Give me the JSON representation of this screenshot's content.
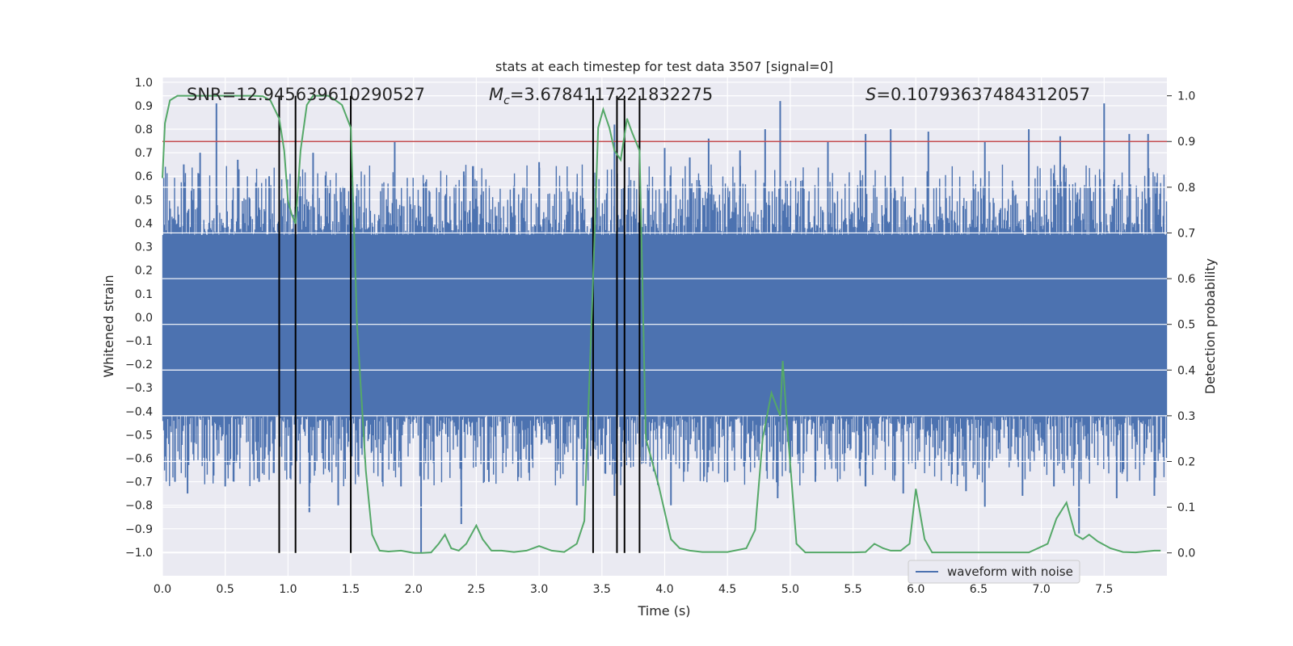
{
  "chart_data": {
    "type": "line",
    "title": "stats at each timestep for test data 3507 [signal=0]",
    "xlabel": "Time (s)",
    "ylabel": "Whitened strain",
    "y2label": "Detection probability",
    "xlim": [
      0.0,
      8.0
    ],
    "ylim": [
      -1.1,
      1.02
    ],
    "y2lim": [
      -0.05,
      1.04
    ],
    "xticks": [
      "0.0",
      "0.5",
      "1.0",
      "1.5",
      "2.0",
      "2.5",
      "3.0",
      "3.5",
      "4.0",
      "4.5",
      "5.0",
      "5.5",
      "6.0",
      "6.5",
      "7.0",
      "7.5"
    ],
    "xtick_values": [
      0.0,
      0.5,
      1.0,
      1.5,
      2.0,
      2.5,
      3.0,
      3.5,
      4.0,
      4.5,
      5.0,
      5.5,
      6.0,
      6.5,
      7.0,
      7.5
    ],
    "yticks": [
      "1.0",
      "0.9",
      "0.8",
      "0.7",
      "0.6",
      "0.5",
      "0.4",
      "0.3",
      "0.2",
      "0.1",
      "0.0",
      "−0.1",
      "−0.2",
      "−0.3",
      "−0.4",
      "−0.5",
      "−0.6",
      "−0.7",
      "−0.8",
      "−0.9",
      "−1.0"
    ],
    "ytick_values": [
      1.0,
      0.9,
      0.8,
      0.7,
      0.6,
      0.5,
      0.4,
      0.3,
      0.2,
      0.1,
      0.0,
      -0.1,
      -0.2,
      -0.3,
      -0.4,
      -0.5,
      -0.6,
      -0.7,
      -0.8,
      -0.9,
      -1.0
    ],
    "y2ticks": [
      "1.0",
      "0.9",
      "0.8",
      "0.7",
      "0.6",
      "0.5",
      "0.4",
      "0.3",
      "0.2",
      "0.1",
      "0.0"
    ],
    "y2tick_values": [
      1.0,
      0.9,
      0.8,
      0.7,
      0.6,
      0.5,
      0.4,
      0.3,
      0.2,
      0.1,
      0.0
    ],
    "annotations": {
      "snr": "SNR=12.945639610290527",
      "mc_symbol": "M",
      "mc_sub": "c",
      "mc_value": "=3.6784117221832275",
      "s_symbol": "S",
      "s_value": "=0.10793637484312057"
    },
    "legend": {
      "label": "waveform with noise",
      "placement": "bottom-right"
    },
    "threshold": {
      "value": 0.9,
      "axis": "right",
      "color": "#c44e52"
    },
    "vertical_markers": [
      0.93,
      1.06,
      1.5,
      3.43,
      3.62,
      3.68,
      3.8
    ],
    "waveform": {
      "name": "waveform with noise",
      "color": "#4c72b0",
      "core_band": [
        -0.42,
        0.35
      ],
      "spikes_up": [
        [
          0.17,
          0.65
        ],
        [
          0.3,
          0.7
        ],
        [
          0.43,
          0.91
        ],
        [
          0.6,
          0.67
        ],
        [
          0.85,
          0.6
        ],
        [
          1.2,
          0.7
        ],
        [
          1.45,
          0.55
        ],
        [
          1.85,
          0.75
        ],
        [
          2.4,
          0.62
        ],
        [
          3.0,
          0.66
        ],
        [
          3.6,
          0.82
        ],
        [
          4.0,
          0.72
        ],
        [
          4.2,
          0.68
        ],
        [
          4.35,
          0.76
        ],
        [
          4.6,
          0.71
        ],
        [
          4.8,
          0.8
        ],
        [
          4.92,
          0.92
        ],
        [
          5.3,
          0.75
        ],
        [
          5.6,
          0.78
        ],
        [
          5.8,
          0.8
        ],
        [
          6.1,
          0.79
        ],
        [
          6.55,
          0.75
        ],
        [
          6.9,
          0.8
        ],
        [
          7.15,
          0.77
        ],
        [
          7.5,
          0.91
        ],
        [
          7.7,
          0.78
        ],
        [
          7.85,
          0.78
        ]
      ],
      "spikes_down": [
        [
          0.1,
          -0.7
        ],
        [
          0.2,
          -0.75
        ],
        [
          0.5,
          -0.72
        ],
        [
          0.77,
          -0.7
        ],
        [
          1.17,
          -0.83
        ],
        [
          1.4,
          -0.8
        ],
        [
          1.9,
          -0.72
        ],
        [
          2.06,
          -1.0
        ],
        [
          2.38,
          -0.88
        ],
        [
          2.6,
          -0.7
        ],
        [
          3.3,
          -0.8
        ],
        [
          3.6,
          -0.76
        ],
        [
          4.05,
          -0.8
        ],
        [
          4.5,
          -0.7
        ],
        [
          4.9,
          -0.77
        ],
        [
          5.2,
          -0.7
        ],
        [
          5.6,
          -0.72
        ],
        [
          5.9,
          -0.75
        ],
        [
          6.4,
          -0.74
        ],
        [
          6.55,
          -0.81
        ],
        [
          6.85,
          -0.76
        ],
        [
          7.1,
          -0.72
        ],
        [
          7.3,
          -0.92
        ],
        [
          7.6,
          -0.77
        ],
        [
          7.9,
          -0.76
        ]
      ]
    },
    "detection_probability": {
      "name": "Detection probability",
      "color": "#55a868",
      "x": [
        0.0,
        0.02,
        0.06,
        0.12,
        0.2,
        0.3,
        0.45,
        0.6,
        0.72,
        0.8,
        0.86,
        0.93,
        0.97,
        1.0,
        1.03,
        1.06,
        1.1,
        1.15,
        1.2,
        1.26,
        1.32,
        1.38,
        1.43,
        1.5,
        1.55,
        1.62,
        1.67,
        1.73,
        1.8,
        1.9,
        2.0,
        2.07,
        2.14,
        2.2,
        2.25,
        2.3,
        2.36,
        2.42,
        2.5,
        2.55,
        2.62,
        2.7,
        2.8,
        2.9,
        3.0,
        3.1,
        3.2,
        3.3,
        3.36,
        3.43,
        3.47,
        3.51,
        3.56,
        3.6,
        3.65,
        3.7,
        3.74,
        3.8,
        3.85,
        3.95,
        4.05,
        4.12,
        4.2,
        4.3,
        4.5,
        4.65,
        4.72,
        4.78,
        4.85,
        4.92,
        4.94,
        4.97,
        5.05,
        5.12,
        5.3,
        5.5,
        5.6,
        5.67,
        5.74,
        5.8,
        5.88,
        5.95,
        6.0,
        6.07,
        6.13,
        6.3,
        6.6,
        6.9,
        7.05,
        7.12,
        7.2,
        7.27,
        7.33,
        7.38,
        7.45,
        7.55,
        7.65,
        7.75,
        7.9,
        7.95
      ],
      "y": [
        0.82,
        0.94,
        0.99,
        1.0,
        1.0,
        1.0,
        1.0,
        1.0,
        1.0,
        0.999,
        0.99,
        0.95,
        0.88,
        0.77,
        0.74,
        0.72,
        0.88,
        0.98,
        1.0,
        1.0,
        1.0,
        0.99,
        0.98,
        0.93,
        0.5,
        0.18,
        0.04,
        0.005,
        0.003,
        0.005,
        0.0,
        0.0,
        0.001,
        0.02,
        0.04,
        0.01,
        0.005,
        0.02,
        0.06,
        0.03,
        0.005,
        0.005,
        0.002,
        0.005,
        0.015,
        0.005,
        0.002,
        0.02,
        0.07,
        0.6,
        0.93,
        0.97,
        0.93,
        0.88,
        0.86,
        0.95,
        0.92,
        0.88,
        0.25,
        0.15,
        0.03,
        0.01,
        0.005,
        0.002,
        0.002,
        0.01,
        0.05,
        0.25,
        0.35,
        0.3,
        0.42,
        0.3,
        0.02,
        0.001,
        0.001,
        0.001,
        0.002,
        0.02,
        0.01,
        0.005,
        0.005,
        0.02,
        0.14,
        0.03,
        0.001,
        0.001,
        0.001,
        0.001,
        0.02,
        0.075,
        0.11,
        0.04,
        0.03,
        0.04,
        0.025,
        0.01,
        0.002,
        0.001,
        0.005,
        0.005
      ]
    }
  }
}
